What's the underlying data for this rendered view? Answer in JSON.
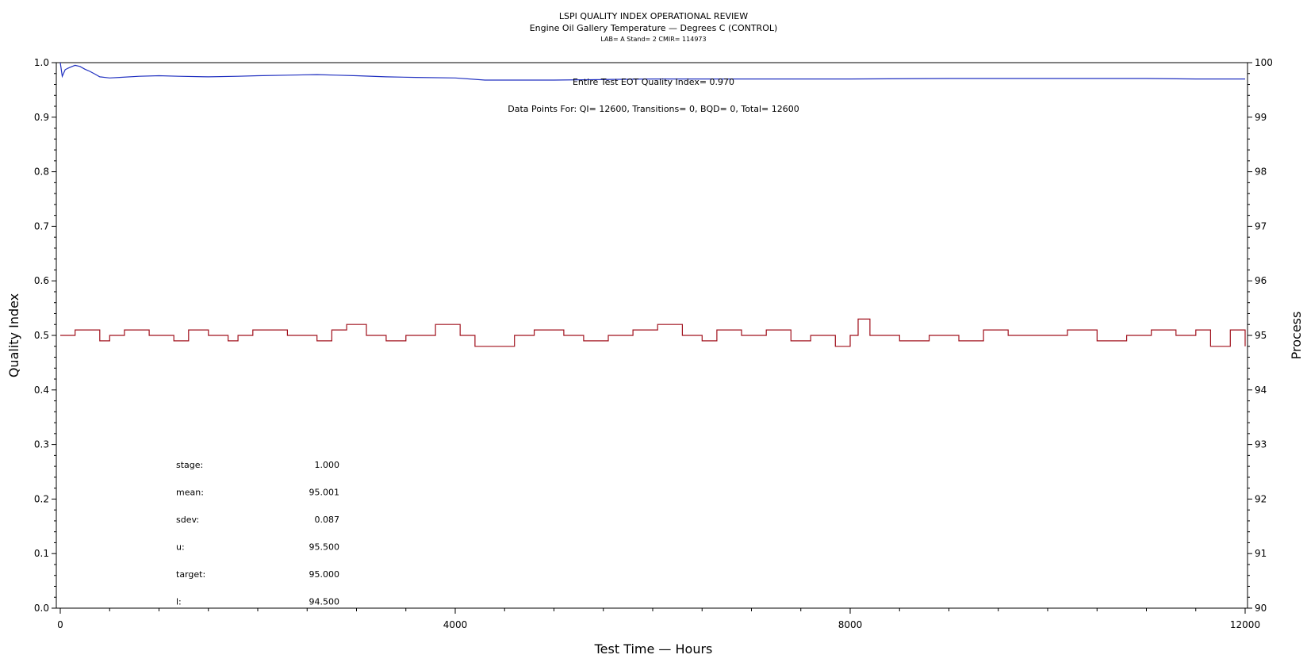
{
  "chart_data": {
    "type": "line",
    "title": "LSPI QUALITY INDEX OPERATIONAL REVIEW",
    "subtitle": "Engine Oil Gallery Temperature — Degrees C (CONTROL)",
    "subtitle2": "LAB= A Stand= 2 CMIR= 114973",
    "xlabel": "Test Time — Hours",
    "ylabel_left": "Quality Index",
    "ylabel_right": "Process",
    "xlim": [
      0,
      12000
    ],
    "ylim_left": [
      0.0,
      1.0
    ],
    "ylim_right": [
      90,
      100
    ],
    "x_ticks": [
      "0",
      "4000",
      "8000",
      "12000"
    ],
    "y_left_ticks": [
      "0.0",
      "0.1",
      "0.2",
      "0.3",
      "0.4",
      "0.5",
      "0.6",
      "0.7",
      "0.8",
      "0.9",
      "1.0"
    ],
    "y_right_ticks": [
      "90",
      "91",
      "92",
      "93",
      "94",
      "95",
      "96",
      "97",
      "98",
      "99",
      "100"
    ],
    "annotations": {
      "qi_text": "Entire Test EOT Quality Index=   0.970",
      "points_text": "Data Points For: QI=  12600, Transitions=      0, BQD=      0, Total=  12600"
    },
    "stats": [
      {
        "label": "stage:",
        "value": "1.000"
      },
      {
        "label": "mean:",
        "value": "95.001"
      },
      {
        "label": "sdev:",
        "value": "0.087"
      },
      {
        "label": "u:",
        "value": "95.500"
      },
      {
        "label": "target:",
        "value": "95.000"
      },
      {
        "label": "l:",
        "value": "94.500"
      }
    ],
    "colors": {
      "quality": "#2030c0",
      "process": "#a0101c",
      "axis": "#000000"
    },
    "series": [
      {
        "axis": "left",
        "x": [
          0,
          20,
          50,
          80,
          120,
          150,
          200,
          250,
          300,
          350,
          400,
          500,
          600,
          800,
          1000,
          1200,
          1500,
          1800,
          2000,
          2300,
          2600,
          2800,
          3000,
          3300,
          3600,
          4000,
          4300,
          4600,
          5000,
          5500,
          6000,
          7000,
          8000,
          9000,
          10000,
          11000,
          11500,
          12000
        ],
        "y": [
          1.0,
          0.975,
          0.987,
          0.99,
          0.993,
          0.995,
          0.993,
          0.988,
          0.984,
          0.979,
          0.974,
          0.972,
          0.973,
          0.975,
          0.976,
          0.975,
          0.974,
          0.975,
          0.976,
          0.977,
          0.978,
          0.977,
          0.976,
          0.974,
          0.973,
          0.972,
          0.968,
          0.968,
          0.968,
          0.969,
          0.97,
          0.97,
          0.97,
          0.971,
          0.971,
          0.971,
          0.97,
          0.97
        ]
      },
      {
        "axis": "right",
        "x": [
          0,
          150,
          400,
          500,
          650,
          900,
          1150,
          1300,
          1500,
          1700,
          1800,
          1950,
          2300,
          2600,
          2750,
          2900,
          3100,
          3300,
          3500,
          3800,
          4050,
          4200,
          4400,
          4600,
          4800,
          5100,
          5300,
          5550,
          5800,
          6050,
          6300,
          6500,
          6650,
          6900,
          7150,
          7400,
          7600,
          7850,
          8000,
          8080,
          8200,
          8500,
          8800,
          9100,
          9350,
          9600,
          9900,
          10200,
          10500,
          10800,
          11050,
          11300,
          11500,
          11650,
          11850,
          12000
        ],
        "y": [
          95.0,
          95.1,
          94.9,
          95.0,
          95.1,
          95.0,
          94.9,
          95.1,
          95.0,
          94.9,
          95.0,
          95.1,
          95.0,
          94.9,
          95.1,
          95.2,
          95.0,
          94.9,
          95.0,
          95.2,
          95.0,
          94.8,
          94.8,
          95.0,
          95.1,
          95.0,
          94.9,
          95.0,
          95.1,
          95.2,
          95.0,
          94.9,
          95.1,
          95.0,
          95.1,
          94.9,
          95.0,
          94.8,
          95.0,
          95.3,
          95.0,
          94.9,
          95.0,
          94.9,
          95.1,
          95.0,
          95.0,
          95.1,
          94.9,
          95.0,
          95.1,
          95.0,
          95.1,
          94.8,
          95.1,
          94.8
        ]
      }
    ]
  }
}
